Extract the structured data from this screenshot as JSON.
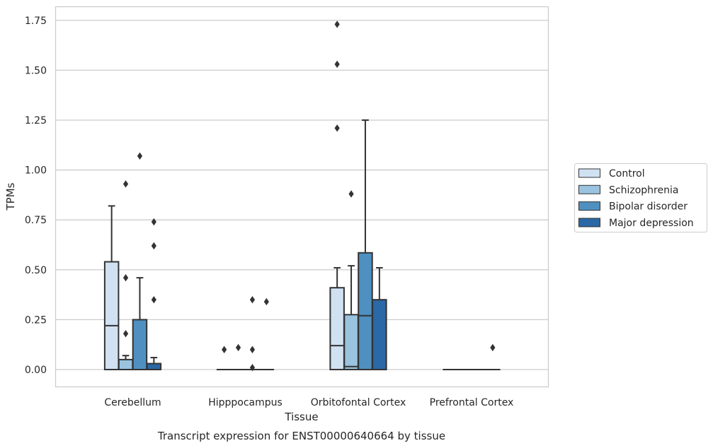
{
  "chart_data": {
    "type": "box",
    "title": "",
    "caption": "Transcript expression for ENST00000640664 by tissue",
    "xlabel": "Tissue",
    "ylabel": "TPMs",
    "ylim": [
      -0.085,
      1.82
    ],
    "yticks": [
      0.0,
      0.25,
      0.5,
      0.75,
      1.0,
      1.25,
      1.5,
      1.75
    ],
    "ytick_labels": [
      "0.00",
      "0.25",
      "0.50",
      "0.75",
      "1.00",
      "1.25",
      "1.50",
      "1.75"
    ],
    "grid": "horizontal",
    "legend_position": "right",
    "categories": [
      "Cerebellum",
      "Hipppocampus",
      "Orbitofontal Cortex",
      "Prefrontal Cortex"
    ],
    "series": [
      {
        "name": "Control",
        "color": "#d0e1f2",
        "boxes": [
          {
            "q1": 0.0,
            "median": 0.22,
            "q3": 0.54,
            "whisker_low": 0.0,
            "whisker_high": 0.82,
            "outliers": []
          },
          {
            "q1": 0.0,
            "median": 0.0,
            "q3": 0.0,
            "whisker_low": 0.0,
            "whisker_high": 0.0,
            "outliers": [
              0.1
            ]
          },
          {
            "q1": 0.0,
            "median": 0.12,
            "q3": 0.41,
            "whisker_low": 0.0,
            "whisker_high": 0.51,
            "outliers": [
              1.73,
              1.53,
              1.21
            ]
          },
          {
            "q1": 0.0,
            "median": 0.0,
            "q3": 0.0,
            "whisker_low": 0.0,
            "whisker_high": 0.0,
            "outliers": []
          }
        ]
      },
      {
        "name": "Schizophrenia",
        "color": "#9ac3df",
        "boxes": [
          {
            "q1": 0.0,
            "median": 0.0,
            "q3": 0.05,
            "whisker_low": 0.0,
            "whisker_high": 0.07,
            "outliers": [
              0.93,
              0.46,
              0.18
            ]
          },
          {
            "q1": 0.0,
            "median": 0.0,
            "q3": 0.0,
            "whisker_low": 0.0,
            "whisker_high": 0.0,
            "outliers": [
              0.11
            ]
          },
          {
            "q1": 0.0,
            "median": 0.015,
            "q3": 0.275,
            "whisker_low": 0.0,
            "whisker_high": 0.52,
            "outliers": [
              0.88
            ]
          },
          {
            "q1": 0.0,
            "median": 0.0,
            "q3": 0.0,
            "whisker_low": 0.0,
            "whisker_high": 0.0,
            "outliers": []
          }
        ]
      },
      {
        "name": "Bipolar disorder",
        "color": "#4f90c1",
        "boxes": [
          {
            "q1": 0.0,
            "median": 0.0,
            "q3": 0.25,
            "whisker_low": 0.0,
            "whisker_high": 0.46,
            "outliers": [
              1.07
            ]
          },
          {
            "q1": 0.0,
            "median": 0.0,
            "q3": 0.0,
            "whisker_low": 0.0,
            "whisker_high": 0.0,
            "outliers": [
              0.35,
              0.1,
              0.01
            ]
          },
          {
            "q1": 0.0,
            "median": 0.27,
            "q3": 0.585,
            "whisker_low": 0.0,
            "whisker_high": 1.25,
            "outliers": []
          },
          {
            "q1": 0.0,
            "median": 0.0,
            "q3": 0.0,
            "whisker_low": 0.0,
            "whisker_high": 0.0,
            "outliers": []
          }
        ]
      },
      {
        "name": "Major depression",
        "color": "#2a68a6",
        "boxes": [
          {
            "q1": 0.0,
            "median": 0.0,
            "q3": 0.03,
            "whisker_low": 0.0,
            "whisker_high": 0.06,
            "outliers": [
              0.74,
              0.62,
              0.35
            ]
          },
          {
            "q1": 0.0,
            "median": 0.0,
            "q3": 0.0,
            "whisker_low": 0.0,
            "whisker_high": 0.0,
            "outliers": [
              0.34
            ]
          },
          {
            "q1": 0.0,
            "median": 0.0,
            "q3": 0.35,
            "whisker_low": 0.0,
            "whisker_high": 0.51,
            "outliers": []
          },
          {
            "q1": 0.0,
            "median": 0.0,
            "q3": 0.0,
            "whisker_low": 0.0,
            "whisker_high": 0.0,
            "outliers": [
              0.11
            ]
          }
        ]
      }
    ]
  },
  "style": {
    "gridline_color": "#cccccc",
    "frame_color": "#cccccc",
    "box_edge_color": "#333333",
    "outlier_color": "#333333",
    "background": "#ffffff"
  }
}
